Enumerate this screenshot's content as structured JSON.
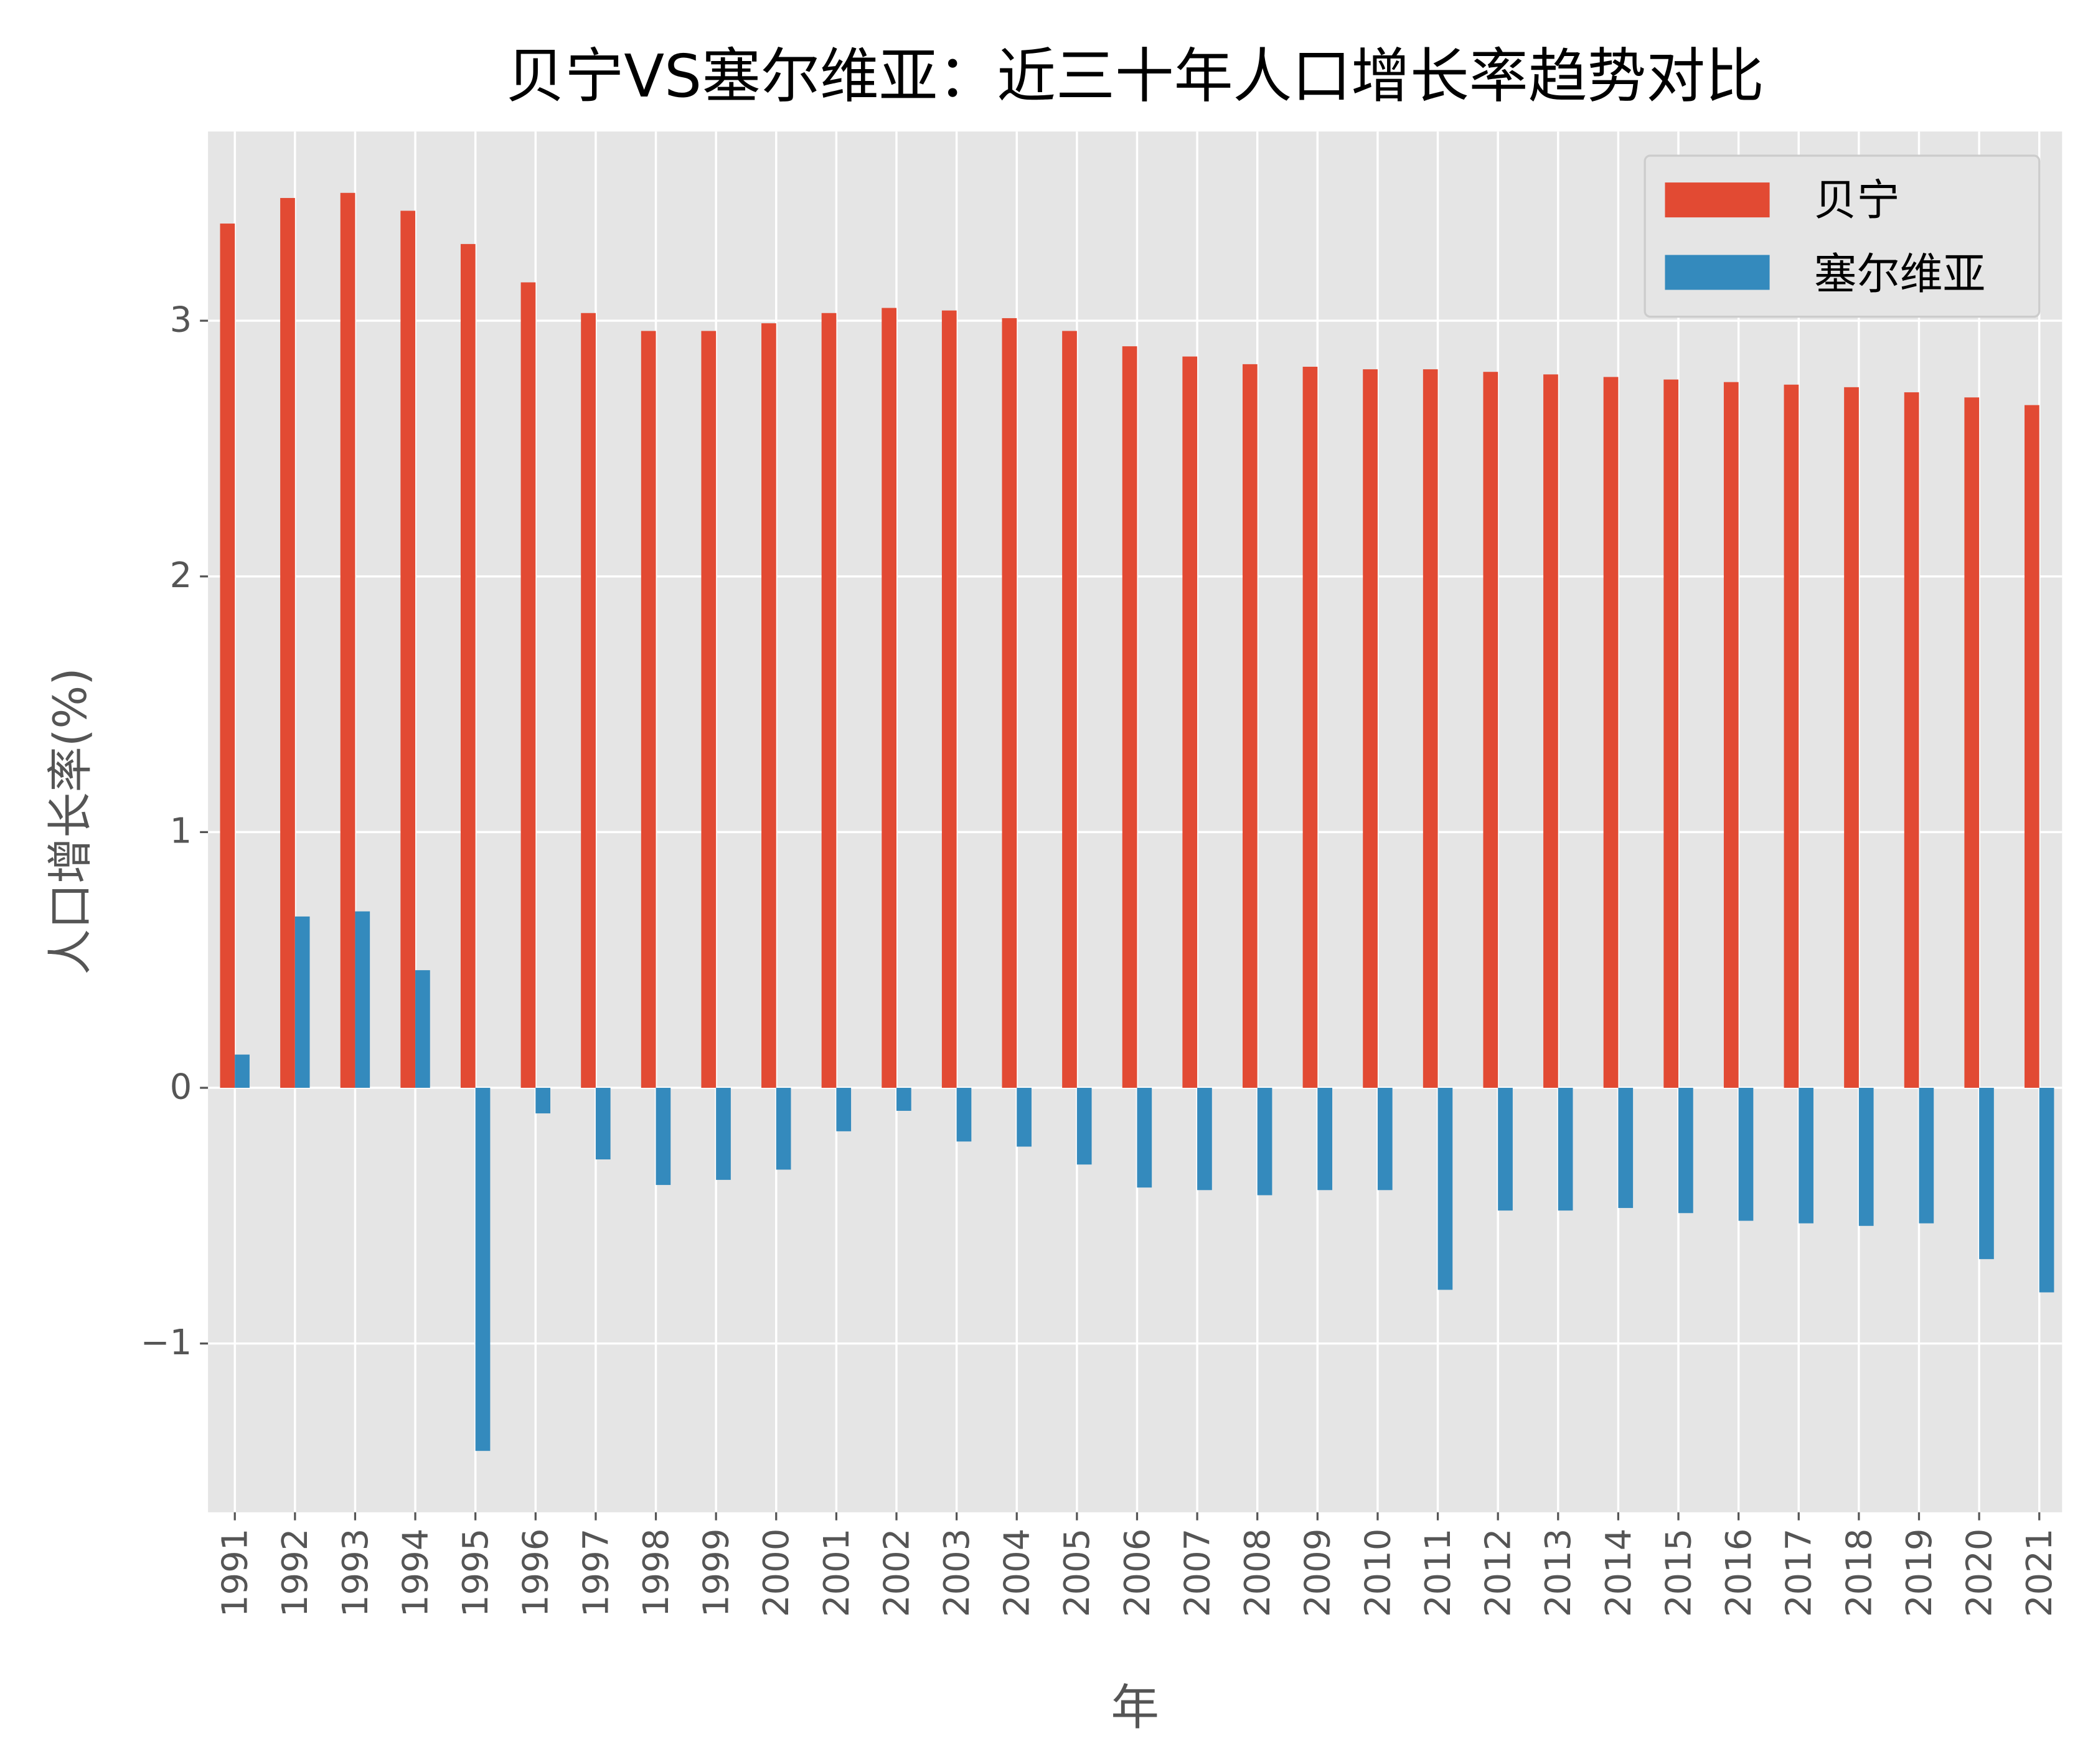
{
  "chart_data": {
    "type": "bar",
    "title": "贝宁VS塞尔维亚：近三十年人口增长率趋势对比",
    "xlabel": "年",
    "ylabel": "人口增长率(%)",
    "ylim": [
      -1.66,
      3.74
    ],
    "yticks": [
      -1,
      0,
      1,
      2,
      3
    ],
    "grid": true,
    "legend_position": "top-right",
    "categories": [
      "1991",
      "1992",
      "1993",
      "1994",
      "1995",
      "1996",
      "1997",
      "1998",
      "1999",
      "2000",
      "2001",
      "2002",
      "2003",
      "2004",
      "2005",
      "2006",
      "2007",
      "2008",
      "2009",
      "2010",
      "2011",
      "2012",
      "2013",
      "2014",
      "2015",
      "2016",
      "2017",
      "2018",
      "2019",
      "2020",
      "2021"
    ],
    "series": [
      {
        "name": "贝宁",
        "color": "#E24A33",
        "values": [
          3.38,
          3.48,
          3.5,
          3.43,
          3.3,
          3.15,
          3.03,
          2.96,
          2.96,
          2.99,
          3.03,
          3.05,
          3.04,
          3.01,
          2.96,
          2.9,
          2.86,
          2.83,
          2.82,
          2.81,
          2.81,
          2.8,
          2.79,
          2.78,
          2.77,
          2.76,
          2.75,
          2.74,
          2.72,
          2.7,
          2.67
        ]
      },
      {
        "name": "塞尔维亚",
        "color": "#348ABD",
        "values": [
          0.13,
          0.67,
          0.69,
          0.46,
          -1.42,
          -0.1,
          -0.28,
          -0.38,
          -0.36,
          -0.32,
          -0.17,
          -0.09,
          -0.21,
          -0.23,
          -0.3,
          -0.39,
          -0.4,
          -0.42,
          -0.4,
          -0.4,
          -0.79,
          -0.48,
          -0.48,
          -0.47,
          -0.49,
          -0.52,
          -0.53,
          -0.54,
          -0.53,
          -0.67,
          -0.8
        ]
      }
    ]
  }
}
